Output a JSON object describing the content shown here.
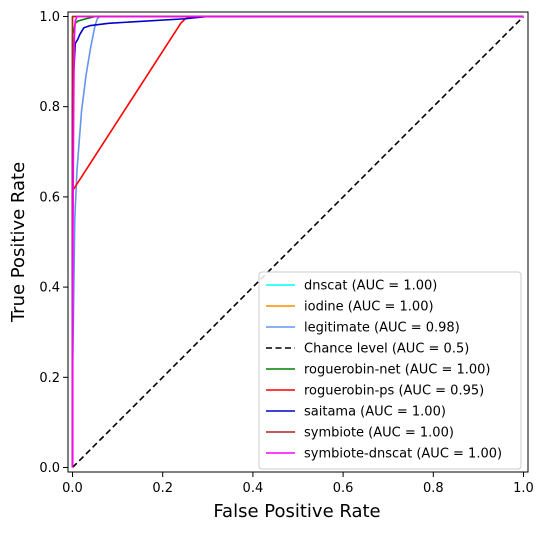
{
  "chart_data": {
    "type": "line",
    "title": "",
    "xlabel": "False Positive Rate",
    "ylabel": "True Positive Rate",
    "xlim": [
      -0.01,
      1.01
    ],
    "ylim": [
      -0.01,
      1.01
    ],
    "xticks": [
      0.0,
      0.2,
      0.4,
      0.6,
      0.8,
      1.0
    ],
    "xtick_labels": [
      "0.0",
      "0.2",
      "0.4",
      "0.6",
      "0.8",
      "1.0"
    ],
    "yticks": [
      0.0,
      0.2,
      0.4,
      0.6,
      0.8,
      1.0
    ],
    "ytick_labels": [
      "0.0",
      "0.2",
      "0.4",
      "0.6",
      "0.8",
      "1.0"
    ],
    "grid": false,
    "legend_position": "lower-right",
    "series": [
      {
        "name": "dnscat (AUC = 1.00)",
        "color": "#00ffff",
        "dash": "solid",
        "points": [
          [
            0.0,
            0.0
          ],
          [
            0.0,
            1.0
          ],
          [
            1.0,
            1.0
          ]
        ]
      },
      {
        "name": "iodine (AUC = 1.00)",
        "color": "#ff8c00",
        "dash": "solid",
        "points": [
          [
            0.0,
            0.0
          ],
          [
            0.0,
            1.0
          ],
          [
            1.0,
            1.0
          ]
        ]
      },
      {
        "name": "legitimate (AUC = 0.98)",
        "color": "#6495ed",
        "dash": "solid",
        "points": [
          [
            0.0,
            0.0
          ],
          [
            0.0,
            0.2
          ],
          [
            0.003,
            0.4
          ],
          [
            0.005,
            0.55
          ],
          [
            0.01,
            0.66
          ],
          [
            0.02,
            0.79
          ],
          [
            0.03,
            0.87
          ],
          [
            0.04,
            0.93
          ],
          [
            0.05,
            0.98
          ],
          [
            0.055,
            0.995
          ],
          [
            0.06,
            1.0
          ],
          [
            1.0,
            1.0
          ]
        ]
      },
      {
        "name": "Chance level (AUC = 0.5)",
        "color": "#000000",
        "dash": "dashed",
        "points": [
          [
            0.0,
            0.0
          ],
          [
            1.0,
            1.0
          ]
        ]
      },
      {
        "name": "roguerobin-net (AUC = 1.00)",
        "color": "#008000",
        "dash": "solid",
        "points": [
          [
            0.0,
            0.0
          ],
          [
            0.0,
            0.96
          ],
          [
            0.003,
            0.97
          ],
          [
            0.006,
            0.985
          ],
          [
            0.012,
            0.99
          ],
          [
            0.03,
            0.995
          ],
          [
            0.05,
            1.0
          ],
          [
            1.0,
            1.0
          ]
        ]
      },
      {
        "name": "roguerobin-ps (AUC = 0.95)",
        "color": "#ff0000",
        "dash": "solid",
        "points": [
          [
            0.0,
            0.0
          ],
          [
            0.0,
            0.61
          ],
          [
            0.001,
            0.615
          ],
          [
            0.24,
            0.985
          ],
          [
            0.25,
            0.995
          ],
          [
            0.27,
            1.0
          ],
          [
            1.0,
            1.0
          ]
        ]
      },
      {
        "name": "saitama (AUC = 1.00)",
        "color": "#0000cd",
        "dash": "solid",
        "points": [
          [
            0.0,
            0.0
          ],
          [
            0.0,
            0.82
          ],
          [
            0.002,
            0.87
          ],
          [
            0.004,
            0.9
          ],
          [
            0.006,
            0.94
          ],
          [
            0.012,
            0.95
          ],
          [
            0.016,
            0.96
          ],
          [
            0.025,
            0.975
          ],
          [
            0.04,
            0.98
          ],
          [
            0.08,
            0.985
          ],
          [
            0.25,
            0.995
          ],
          [
            0.3,
            1.0
          ],
          [
            1.0,
            1.0
          ]
        ]
      },
      {
        "name": "symbiote (AUC = 1.00)",
        "color": "#b22222",
        "dash": "solid",
        "points": [
          [
            0.0,
            0.0
          ],
          [
            0.0,
            1.0
          ],
          [
            1.0,
            1.0
          ]
        ]
      },
      {
        "name": "symbiote-dnscat (AUC = 1.00)",
        "color": "#ff00ff",
        "dash": "solid",
        "points": [
          [
            0.0,
            0.0
          ],
          [
            0.0,
            0.33
          ],
          [
            0.002,
            0.7
          ],
          [
            0.003,
            0.85
          ],
          [
            0.004,
            0.95
          ],
          [
            0.006,
            0.99
          ],
          [
            0.01,
            1.0
          ],
          [
            1.0,
            1.0
          ]
        ]
      }
    ]
  }
}
